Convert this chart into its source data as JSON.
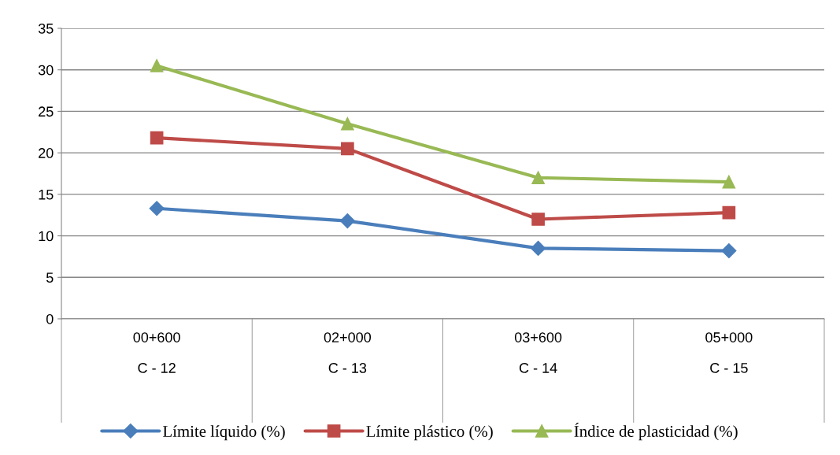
{
  "chart_data": {
    "type": "line",
    "categories": [
      "00+600\n\nC - 12",
      "02+000\n\nC - 13",
      "03+600\n\nC - 14",
      "05+000\n\nC - 15"
    ],
    "series": [
      {
        "name": "Límite líquido (%)",
        "color": "#4a7ebb",
        "marker": "diamond",
        "values": [
          13.3,
          11.8,
          8.5,
          8.2
        ]
      },
      {
        "name": "Límite plástico (%)",
        "color": "#be4b48",
        "marker": "square",
        "values": [
          21.8,
          20.5,
          12.0,
          12.8
        ]
      },
      {
        "name": "Índice de plasticidad (%)",
        "color": "#98b954",
        "marker": "triangle",
        "values": [
          30.5,
          23.5,
          17.0,
          16.5
        ]
      }
    ],
    "ylim": [
      0,
      35
    ],
    "yticks": [
      0,
      5,
      10,
      15,
      20,
      25,
      30,
      35
    ],
    "grid": "y",
    "legend": "bottom",
    "line_style": "solid"
  }
}
